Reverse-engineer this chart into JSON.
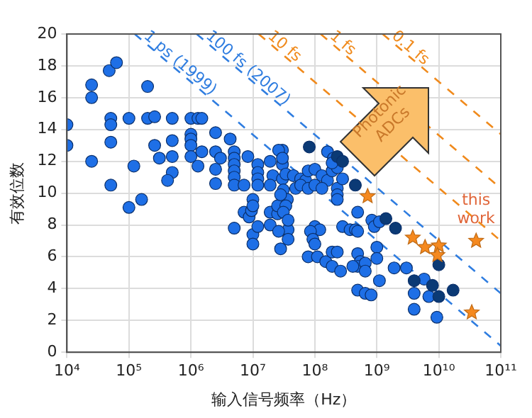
{
  "chart_data": {
    "type": "scatter",
    "xlabel": "输入信号频率（Hz）",
    "ylabel": "有效位数",
    "log": "x",
    "grid": true,
    "legend": false,
    "xlim": [
      10000.0,
      100000000000.0
    ],
    "xticks": [
      {
        "value": 10000.0,
        "label": "10⁴"
      },
      {
        "value": 100000.0,
        "label": "10⁵"
      },
      {
        "value": 1000000.0,
        "label": "10⁶"
      },
      {
        "value": 10000000.0,
        "label": "10⁷"
      },
      {
        "value": 100000000.0,
        "label": "10⁸"
      },
      {
        "value": 1000000000.0,
        "label": "10⁹"
      },
      {
        "value": 10000000000.0,
        "label": "10¹⁰"
      },
      {
        "value": 100000000000.0,
        "label": "10¹¹"
      }
    ],
    "ylim": [
      0,
      20
    ],
    "yticks": [
      0,
      2,
      4,
      6,
      8,
      10,
      12,
      14,
      16,
      18,
      20
    ],
    "annotations": [
      "Photonic ADCs",
      "this work"
    ],
    "series": [
      {
        "name": "1 ps (1999)",
        "type": "line",
        "color": "#2f7de0",
        "marker": "none",
        "line_style": "dashed",
        "x": [
          124000.0,
          100000000000.0
        ],
        "values": [
          20,
          0.4
        ]
      },
      {
        "name": "100 fs (2007)",
        "type": "line",
        "color": "#2f7de0",
        "marker": "none",
        "line_style": "dashed",
        "x": [
          1240000.0,
          100000000000.0
        ],
        "values": [
          20,
          3.7
        ]
      },
      {
        "name": "10 fs",
        "type": "line",
        "color": "#f08a1c",
        "marker": "none",
        "line_style": "dashed",
        "x": [
          12400000.0,
          100000000000.0
        ],
        "values": [
          20,
          7.0
        ]
      },
      {
        "name": "1 fs",
        "type": "line",
        "color": "#f08a1c",
        "marker": "none",
        "line_style": "dashed",
        "x": [
          124000000.0,
          100000000000.0
        ],
        "values": [
          20,
          10.3
        ]
      },
      {
        "name": "0.1 fs",
        "type": "line",
        "color": "#f08a1c",
        "marker": "none",
        "line_style": "dashed",
        "x": [
          1240000000.0,
          100000000000.0
        ],
        "values": [
          20,
          13.7
        ]
      },
      {
        "type": "scatter",
        "color": "#1e6fe6",
        "marker": "circle",
        "x": [
          10000.0,
          10000.0,
          25000.0,
          25000.0,
          25000.0,
          48000.0,
          63000.0,
          51000.0,
          51000.0,
          51000.0,
          51000.0,
          100000.0,
          120000.0,
          200000.0,
          200000.0,
          260000.0,
          260000.0,
          310000.0,
          500000.0,
          500000.0,
          500000.0,
          500000.0,
          420000.0,
          1000000.0,
          1000000.0,
          1000000.0,
          1000000.0,
          1000000.0,
          1300000.0,
          1500000.0,
          1500000.0,
          1300000.0,
          2500000.0,
          2500000.0,
          2500000.0,
          2500000.0,
          3000000.0,
          4300000.0,
          5000000.0,
          5000000.0,
          5000000.0,
          5000000.0,
          5000000.0,
          5000000.0,
          8300000.0,
          7200000.0,
          12000000.0,
          12000000.0,
          12000000.0,
          12000000.0,
          19000000.0,
          21000000.0,
          30000000.0,
          30000000.0,
          30000000.0,
          31000000.0,
          19000000.0,
          100000.0,
          160000.0,
          5000000.0,
          7200000.0,
          8700000.0,
          9500000.0,
          10000000.0,
          10000000.0,
          10000000.0,
          10000000.0,
          12000000.0,
          19000000.0,
          19000000.0,
          25000000.0,
          25000000.0,
          36000000.0,
          37000000.0,
          37000000.0,
          34000000.0,
          28000000.0,
          34000000.0,
          31000000.0,
          37000000.0,
          45000000.0,
          59000000.0,
          71000000.0,
          49000000.0,
          78000000.0,
          100000000.0,
          130000000.0,
          160000000.0,
          190000000.0,
          59000000.0,
          78000000.0,
          100000000.0,
          130000000.0,
          230000000.0,
          230000000.0,
          230000000.0,
          280000000.0,
          490000000.0,
          830000000.0,
          910000000.0,
          1100000000.0,
          100000000.0,
          120000000.0,
          85000000.0,
          93000000.0,
          100000000.0,
          26000000.0,
          28000000.0,
          78000000.0,
          110000000.0,
          150000000.0,
          190000000.0,
          260000000.0,
          190000000.0,
          230000000.0,
          280000000.0,
          370000000.0,
          450000000.0,
          490000000.0,
          490000000.0,
          540000000.0,
          490000000.0,
          650000000.0,
          650000000.0,
          410000000.0,
          1000000000.0,
          1000000000.0,
          1100000000.0,
          490000000.0,
          650000000.0,
          810000000.0,
          1900000000.0,
          3000000000.0,
          5800000000.0,
          4000000000.0,
          6900000000.0,
          4000000000.0,
          9300000000.0,
          26000000.0,
          30000000.0,
          160000000.0,
          200000000.0,
          230000000.0,
          190000000.0
        ],
        "values": [
          14.3,
          13.0,
          16.8,
          16.0,
          12.0,
          17.7,
          18.2,
          14.7,
          14.3,
          13.2,
          10.5,
          14.7,
          11.7,
          16.7,
          14.7,
          14.8,
          13.0,
          12.2,
          14.7,
          13.3,
          12.3,
          11.3,
          10.8,
          14.7,
          13.7,
          13.4,
          13.0,
          12.3,
          14.7,
          14.7,
          12.6,
          11.7,
          13.8,
          12.6,
          11.5,
          10.6,
          12.2,
          13.4,
          12.6,
          12.2,
          11.8,
          11.4,
          11.0,
          10.5,
          12.3,
          10.5,
          11.8,
          11.3,
          10.9,
          10.5,
          12.0,
          11.1,
          12.7,
          11.8,
          10.9,
          10.2,
          10.5,
          9.1,
          9.6,
          7.8,
          8.8,
          8.5,
          8.9,
          9.6,
          9.2,
          7.4,
          6.8,
          7.9,
          8.0,
          8.8,
          8.7,
          9.2,
          9.6,
          7.7,
          7.1,
          11.2,
          9.9,
          9.2,
          8.8,
          8.3,
          11.1,
          10.9,
          10.8,
          10.3,
          11.4,
          11.5,
          11.1,
          10.8,
          11.4,
          10.5,
          10.3,
          10.5,
          10.3,
          10.3,
          9.9,
          9.6,
          10.9,
          8.8,
          8.3,
          7.9,
          8.2,
          7.9,
          7.7,
          7.6,
          7.1,
          6.8,
          7.6,
          6.5,
          6.0,
          6.0,
          5.7,
          5.4,
          5.1,
          6.3,
          6.3,
          7.9,
          7.7,
          7.7,
          7.6,
          6.2,
          5.7,
          5.4,
          5.6,
          5.1,
          5.4,
          6.6,
          5.9,
          4.5,
          3.9,
          3.7,
          3.6,
          5.3,
          5.3,
          4.6,
          3.7,
          3.5,
          2.7,
          2.2,
          12.7,
          12.2,
          12.6,
          12.2,
          11.6,
          11.9
        ]
      },
      {
        "type": "scatter",
        "color": "#0b3a75",
        "marker": "circle",
        "x": [
          81300000.0,
          230000000.0,
          280000000.0,
          450000000.0,
          1400000000.0,
          2000000000.0,
          4000000000.0,
          7900000000.0,
          10000000000.0,
          17000000000.0,
          10000000000.0
        ],
        "values": [
          12.9,
          12.3,
          12.0,
          10.5,
          8.4,
          7.8,
          4.5,
          4.2,
          3.5,
          3.9,
          5.5
        ]
      },
      {
        "type": "scatter",
        "color": "#f5891f",
        "marker": "star",
        "x": [
          710000000.0,
          3800000000.0,
          6000000000.0,
          10000000000.0,
          9500000000.0,
          34000000000.0,
          40000000000.0
        ],
        "values": [
          9.8,
          7.2,
          6.6,
          6.7,
          6.1,
          2.5,
          7.0
        ]
      }
    ]
  }
}
